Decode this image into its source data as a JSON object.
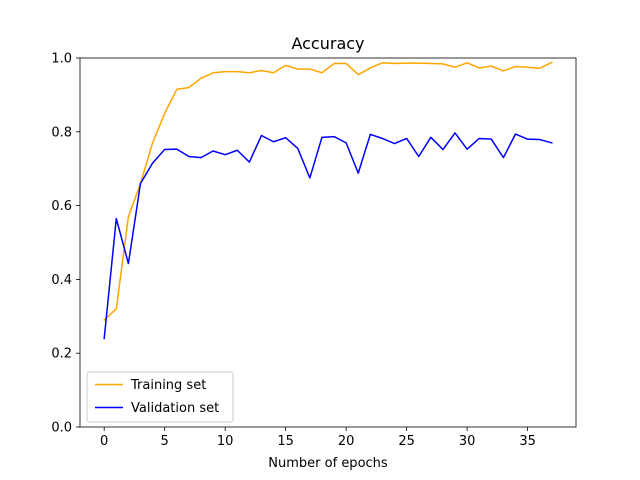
{
  "chart_data": {
    "type": "line",
    "title": "Accuracy",
    "xlabel": "Number of epochs",
    "ylabel": "",
    "xlim": [
      -2,
      39
    ],
    "ylim": [
      0.0,
      1.0
    ],
    "x_ticks": [
      0,
      5,
      10,
      15,
      20,
      25,
      30,
      35
    ],
    "y_ticks": [
      0.0,
      0.2,
      0.4,
      0.6,
      0.8,
      1.0
    ],
    "x_tick_labels": [
      "0",
      "5",
      "10",
      "15",
      "20",
      "25",
      "30",
      "35"
    ],
    "y_tick_labels": [
      "0.0",
      "0.2",
      "0.4",
      "0.6",
      "0.8",
      "1.0"
    ],
    "grid": false,
    "legend_position": "lower-left",
    "x": [
      0,
      1,
      2,
      3,
      4,
      5,
      6,
      7,
      8,
      9,
      10,
      11,
      12,
      13,
      14,
      15,
      16,
      17,
      18,
      19,
      20,
      21,
      22,
      23,
      24,
      25,
      26,
      27,
      28,
      29,
      30,
      31,
      32,
      33,
      34,
      35,
      36,
      37
    ],
    "series": [
      {
        "name": "Training set",
        "color": "#ffa500",
        "values": [
          0.29,
          0.32,
          0.57,
          0.66,
          0.77,
          0.85,
          0.915,
          0.92,
          0.945,
          0.96,
          0.963,
          0.963,
          0.96,
          0.966,
          0.96,
          0.98,
          0.97,
          0.97,
          0.96,
          0.985,
          0.985,
          0.955,
          0.973,
          0.987,
          0.985,
          0.986,
          0.986,
          0.985,
          0.984,
          0.975,
          0.987,
          0.973,
          0.978,
          0.965,
          0.977,
          0.975,
          0.972,
          0.988
        ]
      },
      {
        "name": "Validation set",
        "color": "#0000ff",
        "values": [
          0.24,
          0.565,
          0.443,
          0.66,
          0.715,
          0.752,
          0.753,
          0.733,
          0.73,
          0.748,
          0.738,
          0.75,
          0.718,
          0.79,
          0.773,
          0.784,
          0.755,
          0.675,
          0.785,
          0.787,
          0.77,
          0.688,
          0.793,
          0.782,
          0.768,
          0.782,
          0.733,
          0.785,
          0.752,
          0.797,
          0.753,
          0.782,
          0.78,
          0.73,
          0.794,
          0.78,
          0.779,
          0.77
        ]
      }
    ]
  }
}
